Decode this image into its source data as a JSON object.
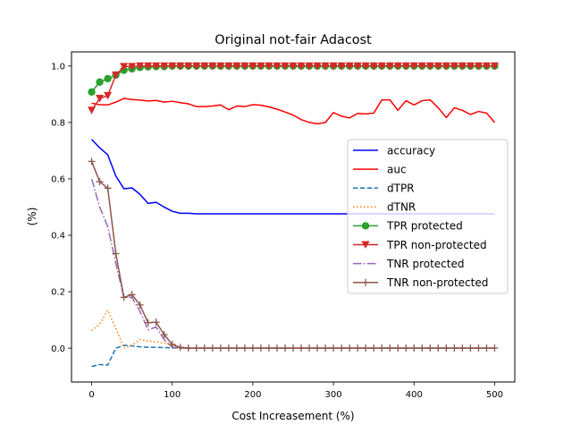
{
  "chart_data": {
    "type": "line",
    "title": "Original not-fair Adacost",
    "xlabel": "Cost Increasement (%)",
    "ylabel": "(%)",
    "xlim": [
      -25,
      525
    ],
    "ylim": [
      -0.12,
      1.05
    ],
    "xticks": [
      0,
      100,
      200,
      300,
      400,
      500
    ],
    "yticks": [
      0.0,
      0.2,
      0.4,
      0.6,
      0.8,
      1.0
    ],
    "xtick_labels": [
      "0",
      "100",
      "200",
      "300",
      "400",
      "500"
    ],
    "ytick_labels": [
      "0.0",
      "0.2",
      "0.4",
      "0.6",
      "0.8",
      "1.0"
    ],
    "grid": false,
    "legend_position": "center-right",
    "x": [
      0,
      10,
      20,
      30,
      40,
      50,
      60,
      70,
      80,
      90,
      100,
      110,
      120,
      130,
      140,
      150,
      160,
      170,
      180,
      190,
      200,
      210,
      220,
      230,
      240,
      250,
      260,
      270,
      280,
      290,
      300,
      310,
      320,
      330,
      340,
      350,
      360,
      370,
      380,
      390,
      400,
      410,
      420,
      430,
      440,
      450,
      460,
      470,
      480,
      490,
      500
    ],
    "series": [
      {
        "name": "accuracy",
        "color": "#0000ff",
        "linestyle": "solid",
        "marker": "none",
        "values": [
          0.74,
          0.71,
          0.685,
          0.61,
          0.565,
          0.568,
          0.545,
          0.513,
          0.517,
          0.5,
          0.485,
          0.478,
          0.478,
          0.476,
          0.476,
          0.476,
          0.476,
          0.476,
          0.476,
          0.476,
          0.476,
          0.476,
          0.476,
          0.476,
          0.476,
          0.476,
          0.476,
          0.476,
          0.476,
          0.476,
          0.476,
          0.476,
          0.476,
          0.476,
          0.476,
          0.476,
          0.476,
          0.476,
          0.476,
          0.476,
          0.476,
          0.476,
          0.476,
          0.476,
          0.476,
          0.476,
          0.476,
          0.476,
          0.476,
          0.476,
          0.476
        ]
      },
      {
        "name": "auc",
        "color": "#ff0000",
        "linestyle": "solid",
        "marker": "none",
        "values": [
          0.868,
          0.863,
          0.862,
          0.872,
          0.885,
          0.881,
          0.879,
          0.876,
          0.878,
          0.872,
          0.875,
          0.87,
          0.866,
          0.856,
          0.856,
          0.858,
          0.862,
          0.845,
          0.858,
          0.856,
          0.863,
          0.861,
          0.855,
          0.847,
          0.837,
          0.826,
          0.81,
          0.8,
          0.795,
          0.8,
          0.835,
          0.822,
          0.816,
          0.832,
          0.83,
          0.833,
          0.88,
          0.88,
          0.843,
          0.877,
          0.862,
          0.877,
          0.88,
          0.852,
          0.817,
          0.852,
          0.843,
          0.828,
          0.839,
          0.833,
          0.8
        ]
      },
      {
        "name": "dTPR",
        "color": "#1f77b4",
        "linestyle": "dashed",
        "marker": "none",
        "values": [
          -0.065,
          -0.058,
          -0.06,
          0.0,
          0.01,
          0.008,
          0.005,
          0.003,
          0.003,
          0.002,
          0.001,
          0.0,
          0.0,
          0.0,
          0.0,
          0.0,
          0.0,
          0.0,
          0.0,
          0.0,
          0.0,
          0.0,
          0.0,
          0.0,
          0.0,
          0.0,
          0.0,
          0.0,
          0.0,
          0.0,
          0.0,
          0.0,
          0.0,
          0.0,
          0.0,
          0.0,
          0.0,
          0.0,
          0.0,
          0.0,
          0.0,
          0.0,
          0.0,
          0.0,
          0.0,
          0.0,
          0.0,
          0.0,
          0.0,
          0.0,
          0.0
        ]
      },
      {
        "name": "dTNR",
        "color": "#ff7f0e",
        "linestyle": "dotted",
        "marker": "none",
        "values": [
          0.062,
          0.085,
          0.135,
          0.07,
          0.0,
          0.01,
          0.03,
          0.025,
          0.022,
          0.018,
          0.01,
          0.0,
          0.0,
          0.0,
          0.0,
          0.0,
          0.0,
          0.0,
          0.0,
          0.0,
          0.0,
          0.0,
          0.0,
          0.0,
          0.0,
          0.0,
          0.0,
          0.0,
          0.0,
          0.0,
          0.0,
          0.0,
          0.0,
          0.0,
          0.0,
          0.0,
          0.0,
          0.0,
          0.0,
          0.0,
          0.0,
          0.0,
          0.0,
          0.0,
          0.0,
          0.0,
          0.0,
          0.0,
          0.0,
          0.0,
          0.0
        ]
      },
      {
        "name": "TPR protected",
        "color": "#2ca02c",
        "linestyle": "solid",
        "marker": "circle",
        "values": [
          0.908,
          0.943,
          0.955,
          0.968,
          0.985,
          0.99,
          0.995,
          0.997,
          0.998,
          0.998,
          1.0,
          1.0,
          1.0,
          1.0,
          1.0,
          1.0,
          1.0,
          1.0,
          1.0,
          1.0,
          1.0,
          1.0,
          1.0,
          1.0,
          1.0,
          1.0,
          1.0,
          1.0,
          1.0,
          1.0,
          1.0,
          1.0,
          1.0,
          1.0,
          1.0,
          1.0,
          1.0,
          1.0,
          1.0,
          1.0,
          1.0,
          1.0,
          1.0,
          1.0,
          1.0,
          1.0,
          1.0,
          1.0,
          1.0,
          1.0,
          1.0
        ]
      },
      {
        "name": "TPR non-protected",
        "color": "#d62728",
        "linestyle": "solid",
        "marker": "triangle-down",
        "values": [
          0.843,
          0.885,
          0.895,
          0.968,
          0.998,
          0.998,
          1.0,
          1.0,
          1.0,
          1.0,
          1.0,
          1.0,
          1.0,
          1.0,
          1.0,
          1.0,
          1.0,
          1.0,
          1.0,
          1.0,
          1.0,
          1.0,
          1.0,
          1.0,
          1.0,
          1.0,
          1.0,
          1.0,
          1.0,
          1.0,
          1.0,
          1.0,
          1.0,
          1.0,
          1.0,
          1.0,
          1.0,
          1.0,
          1.0,
          1.0,
          1.0,
          1.0,
          1.0,
          1.0,
          1.0,
          1.0,
          1.0,
          1.0,
          1.0,
          1.0,
          1.0
        ]
      },
      {
        "name": "TNR protected",
        "color": "#9467bd",
        "linestyle": "dashdot",
        "marker": "none",
        "values": [
          0.6,
          0.5,
          0.43,
          0.3,
          0.18,
          0.18,
          0.13,
          0.065,
          0.075,
          0.03,
          0.003,
          0.0,
          0.0,
          0.0,
          0.0,
          0.0,
          0.0,
          0.0,
          0.0,
          0.0,
          0.0,
          0.0,
          0.0,
          0.0,
          0.0,
          0.0,
          0.0,
          0.0,
          0.0,
          0.0,
          0.0,
          0.0,
          0.0,
          0.0,
          0.0,
          0.0,
          0.0,
          0.0,
          0.0,
          0.0,
          0.0,
          0.0,
          0.0,
          0.0,
          0.0,
          0.0,
          0.0,
          0.0,
          0.0,
          0.0,
          0.0
        ]
      },
      {
        "name": "TNR non-protected",
        "color": "#8c564b",
        "linestyle": "solid",
        "marker": "plus",
        "values": [
          0.662,
          0.59,
          0.567,
          0.335,
          0.18,
          0.19,
          0.153,
          0.09,
          0.092,
          0.048,
          0.013,
          0.003,
          0.0,
          0.0,
          0.0,
          0.0,
          0.0,
          0.0,
          0.0,
          0.0,
          0.0,
          0.0,
          0.0,
          0.0,
          0.0,
          0.0,
          0.0,
          0.0,
          0.0,
          0.0,
          0.0,
          0.0,
          0.0,
          0.0,
          0.0,
          0.0,
          0.0,
          0.0,
          0.0,
          0.0,
          0.0,
          0.0,
          0.0,
          0.0,
          0.0,
          0.0,
          0.0,
          0.0,
          0.0,
          0.0,
          0.0
        ]
      }
    ]
  }
}
